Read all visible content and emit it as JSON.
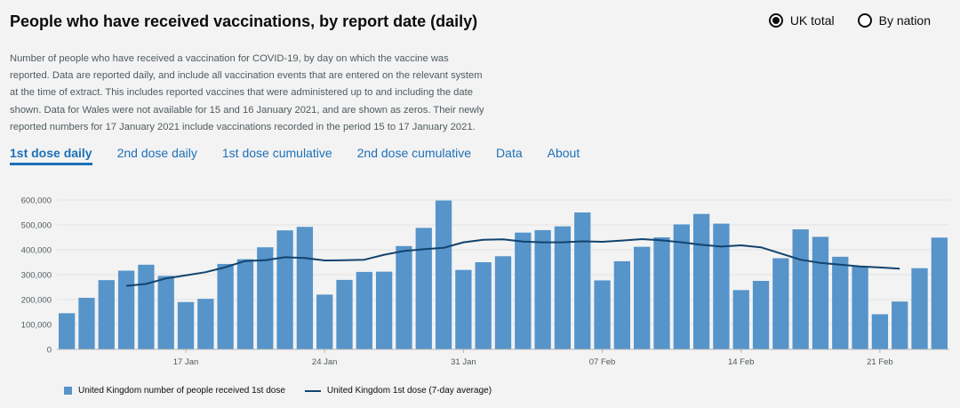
{
  "header": {
    "title": "People who have received vaccinations, by report date (daily)"
  },
  "radios": [
    {
      "label": "UK total",
      "checked": true
    },
    {
      "label": "By nation",
      "checked": false
    }
  ],
  "description": "Number of people who have received a vaccination for COVID-19, by day on which the vaccine was reported. Data are reported daily, and include all vaccination events that are entered on the relevant system at the time of extract. This includes reported vaccines that were administered up to and including the date shown. Data for Wales were not available for 15 and 16 January 2021, and are shown as zeros. Their newly reported numbers for 17 January 2021 include vaccinations recorded in the period 15 to 17 January 2021.",
  "tabs": [
    {
      "label": "1st dose daily",
      "active": true
    },
    {
      "label": "2nd dose daily",
      "active": false
    },
    {
      "label": "1st dose cumulative",
      "active": false
    },
    {
      "label": "2nd dose cumulative",
      "active": false
    },
    {
      "label": "Data",
      "active": false
    },
    {
      "label": "About",
      "active": false
    }
  ],
  "legend": {
    "bar_label": "United Kingdom number of people received 1st dose",
    "line_label": "United Kingdom 1st dose (7-day average)"
  },
  "colors": {
    "bar": "#5694ca",
    "line": "#12436d",
    "link": "#1d70b8"
  },
  "chart_data": {
    "type": "bar",
    "x_tick_labels": [
      {
        "index": 6,
        "label": "17 Jan"
      },
      {
        "index": 13,
        "label": "24 Jan"
      },
      {
        "index": 20,
        "label": "31 Jan"
      },
      {
        "index": 27,
        "label": "07 Feb"
      },
      {
        "index": 34,
        "label": "14 Feb"
      },
      {
        "index": 41,
        "label": "21 Feb"
      }
    ],
    "y_ticks": [
      0,
      100000,
      200000,
      300000,
      400000,
      500000,
      600000
    ],
    "y_tick_labels": [
      "0",
      "100,000",
      "200,000",
      "300,000",
      "400,000",
      "500,000",
      "600,000"
    ],
    "ylim": [
      0,
      600000
    ],
    "series": [
      {
        "type": "bar",
        "values": [
          145000,
          207000,
          278000,
          316000,
          340000,
          295000,
          190000,
          203000,
          343000,
          362000,
          410000,
          478000,
          492000,
          220000,
          279000,
          311000,
          312000,
          415000,
          488000,
          598000,
          319000,
          350000,
          374000,
          469000,
          479000,
          494000,
          550000,
          277000,
          354000,
          412000,
          450000,
          502000,
          544000,
          505000,
          238000,
          275000,
          366000,
          482000,
          452000,
          372000,
          333000,
          141000,
          192000,
          326000,
          449000
        ]
      },
      {
        "type": "line",
        "start_index": 3,
        "values": [
          255000,
          263000,
          285000,
          297000,
          310000,
          330000,
          355000,
          358000,
          370000,
          367000,
          357000,
          358000,
          360000,
          380000,
          395000,
          402000,
          408000,
          430000,
          440000,
          442000,
          433000,
          430000,
          430000,
          434000,
          432000,
          437000,
          443000,
          438000,
          430000,
          420000,
          413000,
          418000,
          410000,
          385000,
          360000,
          347000,
          340000,
          333000,
          329000,
          324000
        ]
      }
    ]
  }
}
